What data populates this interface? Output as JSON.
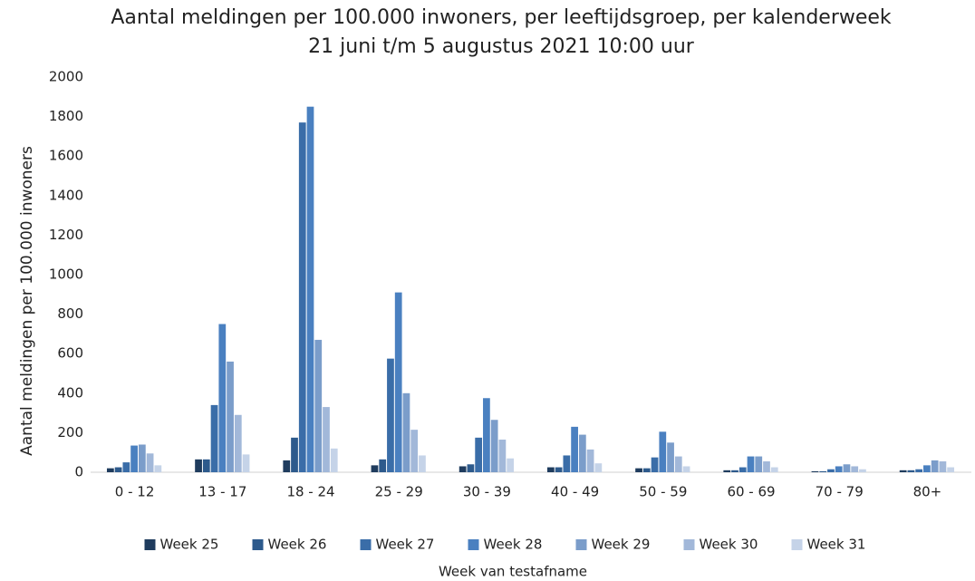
{
  "chart_data": {
    "type": "bar",
    "title": "Aantal meldingen per 100.000 inwoners, per leeftijdsgroep, per kalenderweek",
    "subtitle": "21 juni t/m 5 augustus 2021 10:00 uur",
    "x_label": "Week van testafname",
    "y_label": "Aantal meldingen per 100.000 inwoners",
    "categories": [
      "0 - 12",
      "13 - 17",
      "18 - 24",
      "25 - 29",
      "30 - 39",
      "40 - 49",
      "50 - 59",
      "60 - 69",
      "70 - 79",
      "80+"
    ],
    "series": [
      {
        "name": "Week 25",
        "color": "#1f3c5e",
        "values": [
          20,
          65,
          60,
          35,
          30,
          25,
          20,
          10,
          5,
          10
        ]
      },
      {
        "name": "Week 26",
        "color": "#2d5a8c",
        "values": [
          25,
          65,
          175,
          65,
          40,
          25,
          20,
          10,
          5,
          10
        ]
      },
      {
        "name": "Week 27",
        "color": "#3a6da8",
        "values": [
          50,
          340,
          1770,
          575,
          175,
          85,
          75,
          25,
          15,
          15
        ]
      },
      {
        "name": "Week 28",
        "color": "#4a80c0",
        "values": [
          135,
          750,
          1850,
          910,
          375,
          230,
          205,
          80,
          30,
          35
        ]
      },
      {
        "name": "Week 29",
        "color": "#7b9dca",
        "values": [
          140,
          560,
          670,
          400,
          265,
          190,
          150,
          80,
          40,
          60
        ]
      },
      {
        "name": "Week 30",
        "color": "#a2b8d9",
        "values": [
          95,
          290,
          330,
          215,
          165,
          115,
          80,
          55,
          30,
          55
        ]
      },
      {
        "name": "Week 31",
        "color": "#c5d3e8",
        "values": [
          35,
          90,
          120,
          85,
          70,
          45,
          30,
          25,
          15,
          25
        ]
      }
    ],
    "ylim": [
      0,
      2000
    ],
    "yticks": [
      0,
      200,
      400,
      600,
      800,
      1000,
      1200,
      1400,
      1600,
      1800,
      2000
    ],
    "grid": false,
    "legend": "bottom"
  }
}
